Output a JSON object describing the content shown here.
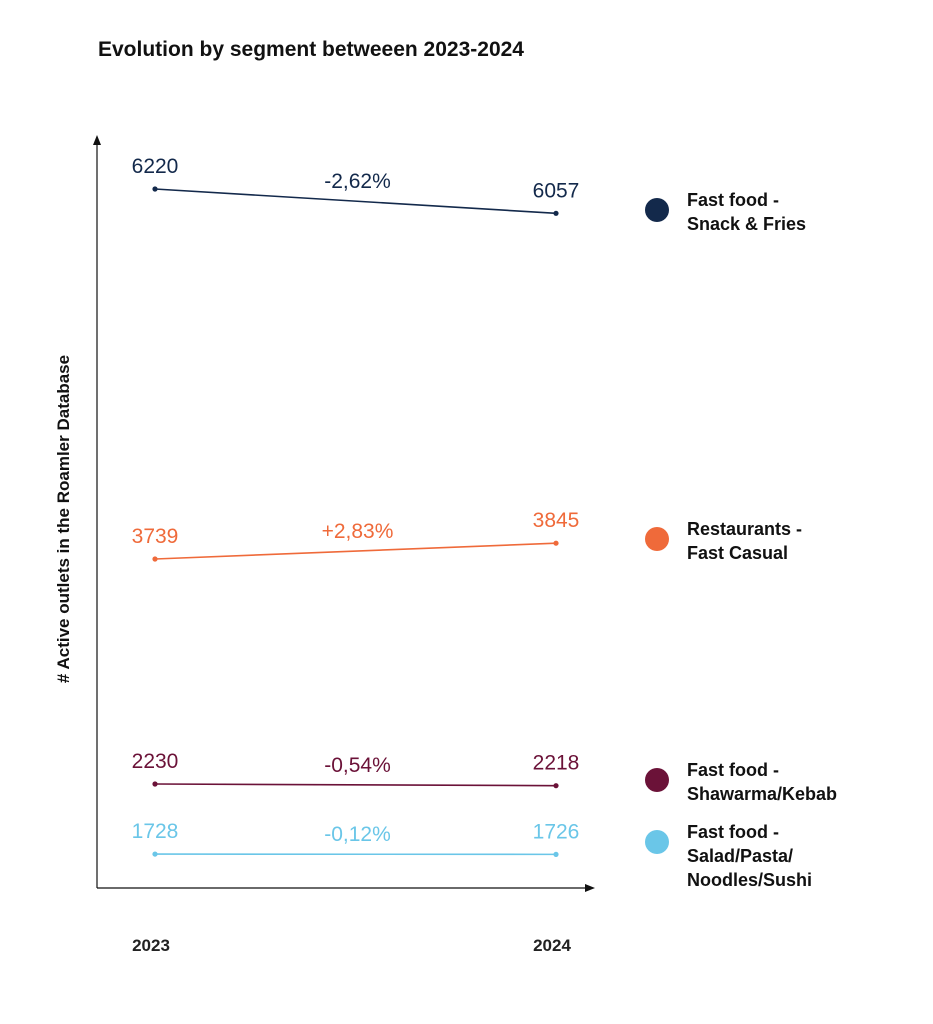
{
  "chart_data": {
    "type": "line",
    "title": "Evolution by segment betweeen 2023-2024",
    "ylabel": "# Active outlets in the Roamler Database",
    "xlabel": "",
    "x": [
      "2023",
      "2024"
    ],
    "grid": false,
    "legend_placement": "right",
    "series": [
      {
        "name": "Fast food -\nSnack & Fries",
        "values": [
          6220,
          6057
        ],
        "labels": [
          "6220",
          "6057"
        ],
        "change": "-2,62%",
        "color": "#13294b"
      },
      {
        "name": "Restaurants -\nFast Casual",
        "values": [
          3739,
          3845
        ],
        "labels": [
          "3739",
          "3845"
        ],
        "change": "+2,83%",
        "color": "#ef6a3a"
      },
      {
        "name": "Fast food -\nShawarma/Kebab",
        "values": [
          2230,
          2218
        ],
        "labels": [
          "2230",
          "2218"
        ],
        "change": "-0,54%",
        "color": "#6b1238"
      },
      {
        "name": "Fast food -\nSalad/Pasta/\nNoodles/Sushi",
        "values": [
          1728,
          1726
        ],
        "labels": [
          "1728",
          "1726"
        ],
        "change": "-0,12%",
        "color": "#6ac6e8"
      }
    ]
  }
}
